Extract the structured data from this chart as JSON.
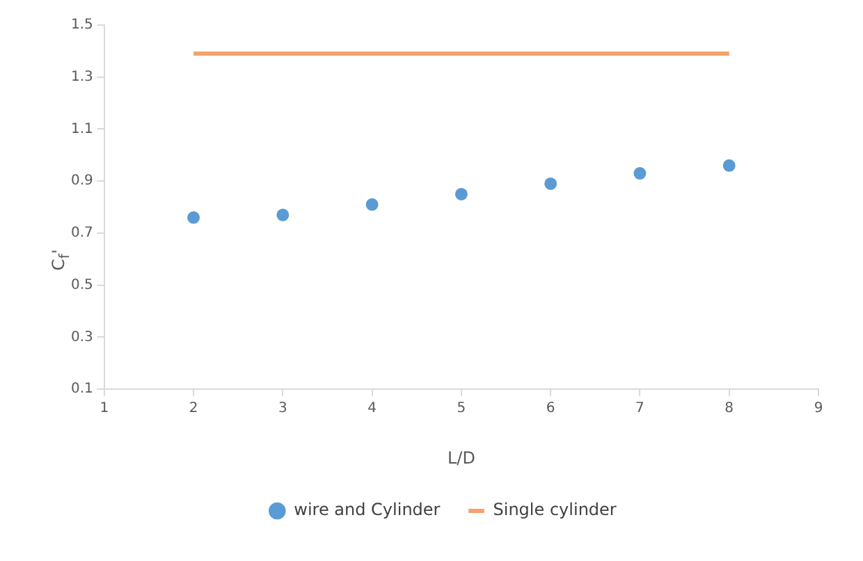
{
  "chart_data": {
    "type": "scatter",
    "xlabel": "L/D",
    "ylabel": "C$_{f}$'",
    "xlim": [
      1,
      9
    ],
    "xticks": [
      1,
      2,
      3,
      4,
      5,
      6,
      7,
      8,
      9
    ],
    "ylim": [
      0.1,
      1.5
    ],
    "yticks": [
      0.1,
      0.3,
      0.5,
      0.7,
      0.9,
      1.1,
      1.3,
      1.5
    ],
    "grid": false,
    "legend": "bottom",
    "series": [
      {
        "name": "wire and Cylinder",
        "type": "scatter",
        "marker": "circle",
        "color": "#5b9bd5",
        "x": [
          2,
          3,
          4,
          5,
          6,
          7,
          8
        ],
        "values": [
          0.76,
          0.77,
          0.81,
          0.85,
          0.89,
          0.93,
          0.96
        ]
      },
      {
        "name": "Single cylinder",
        "type": "line",
        "marker": "none",
        "color": "#f4a36c",
        "x": [
          2,
          8
        ],
        "values": [
          1.39,
          1.39
        ]
      }
    ]
  }
}
